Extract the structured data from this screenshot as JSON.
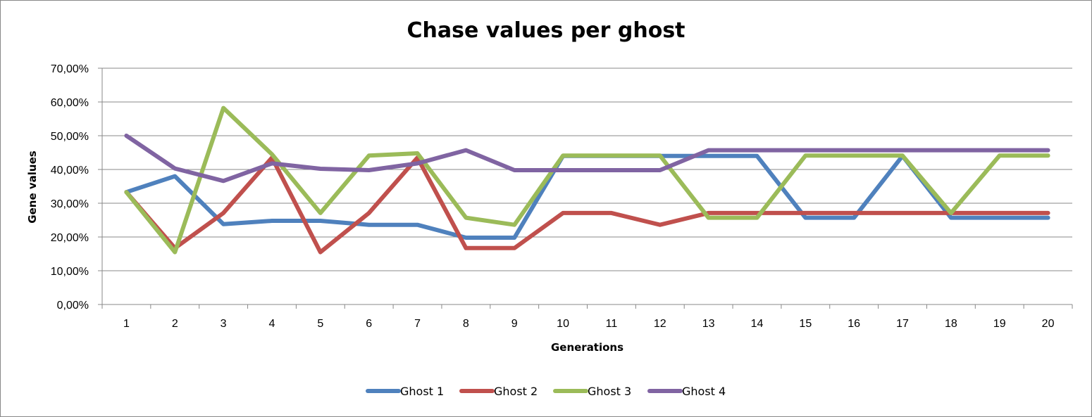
{
  "chart_data": {
    "type": "line",
    "title": "Chase values per ghost",
    "xlabel": "Generations",
    "ylabel": "Gene values",
    "categories": [
      "1",
      "2",
      "3",
      "4",
      "5",
      "6",
      "7",
      "8",
      "9",
      "10",
      "11",
      "12",
      "13",
      "14",
      "15",
      "16",
      "17",
      "18",
      "19",
      "20"
    ],
    "y_ticks": [
      "0,00%",
      "10,00%",
      "20,00%",
      "30,00%",
      "40,00%",
      "50,00%",
      "60,00%",
      "70,00%"
    ],
    "ylim": [
      0,
      70
    ],
    "grid": true,
    "legend_position": "bottom",
    "series": [
      {
        "name": "Ghost 1",
        "color": "#4f81bd",
        "values": [
          33.3,
          38,
          23.8,
          24.8,
          24.8,
          23.6,
          23.6,
          19.8,
          19.8,
          44,
          44,
          44,
          44,
          44,
          25.7,
          25.7,
          44,
          25.7,
          25.7,
          25.7
        ]
      },
      {
        "name": "Ghost 2",
        "color": "#c0504d",
        "values": [
          33.3,
          16.7,
          27.1,
          43.5,
          15.5,
          27.1,
          43.5,
          16.7,
          16.7,
          27.1,
          27.1,
          23.6,
          27.1,
          27.1,
          27.1,
          27.1,
          27.1,
          27.1,
          27.1,
          27.1
        ]
      },
      {
        "name": "Ghost 3",
        "color": "#9bbb59",
        "values": [
          33.3,
          15.5,
          58.2,
          44.5,
          27.1,
          44.1,
          44.8,
          25.7,
          23.6,
          44.1,
          44.1,
          44.1,
          25.7,
          25.7,
          44.1,
          44.1,
          44.1,
          27.1,
          44.1,
          44.1
        ]
      },
      {
        "name": "Ghost 4",
        "color": "#8064a2",
        "values": [
          50,
          40.3,
          36.6,
          41.8,
          40.2,
          39.8,
          41.8,
          45.7,
          39.8,
          39.8,
          39.8,
          39.8,
          45.7,
          45.7,
          45.7,
          45.7,
          45.7,
          45.7,
          45.7,
          45.7
        ]
      }
    ]
  }
}
